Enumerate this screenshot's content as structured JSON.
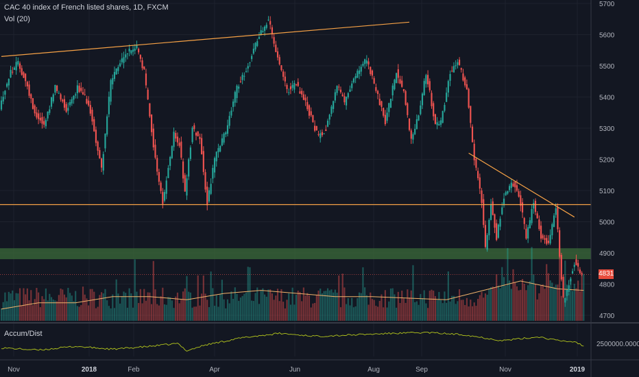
{
  "header": {
    "title": "CAC 40 index of French listed shares, 1D, FXCM",
    "volume_label": "Vol (20)"
  },
  "indicator": {
    "label": "Accum/Dist",
    "value_label": "2500000.0000"
  },
  "last_price": {
    "label": "4831",
    "value": 4831
  },
  "colors": {
    "background": "#131722",
    "up": "#26a69a",
    "down": "#ef5350",
    "trendline": "#f7a246",
    "support_zone": "#3b6b3a",
    "ad_line": "#b6c81c",
    "vol_ma": "#f2b36b"
  },
  "chart_data": {
    "type": "candlestick",
    "title": "CAC 40 index of French listed shares, 1D, FXCM",
    "y_axis": {
      "ticks": [
        4700,
        4800,
        4900,
        5000,
        5100,
        5200,
        5300,
        5400,
        5500,
        5600,
        5700
      ],
      "range": [
        4670,
        5710
      ]
    },
    "x_axis": {
      "labels": [
        "Nov",
        "2018",
        "Feb",
        "Apr",
        "Jun",
        "Aug",
        "Sep",
        "Nov",
        "2019"
      ],
      "bold": [
        "2018",
        "2019"
      ]
    },
    "price_path": [
      [
        0,
        5370
      ],
      [
        6,
        5480
      ],
      [
        10,
        5510
      ],
      [
        14,
        5450
      ],
      [
        19,
        5350
      ],
      [
        24,
        5310
      ],
      [
        30,
        5430
      ],
      [
        36,
        5360
      ],
      [
        42,
        5430
      ],
      [
        48,
        5380
      ],
      [
        55,
        5170
      ],
      [
        60,
        5450
      ],
      [
        68,
        5540
      ],
      [
        74,
        5560
      ],
      [
        78,
        5480
      ],
      [
        84,
        5200
      ],
      [
        88,
        5060
      ],
      [
        94,
        5280
      ],
      [
        97,
        5250
      ],
      [
        100,
        5090
      ],
      [
        104,
        5300
      ],
      [
        108,
        5270
      ],
      [
        112,
        5060
      ],
      [
        116,
        5200
      ],
      [
        122,
        5290
      ],
      [
        128,
        5430
      ],
      [
        134,
        5500
      ],
      [
        140,
        5600
      ],
      [
        145,
        5650
      ],
      [
        150,
        5520
      ],
      [
        155,
        5420
      ],
      [
        160,
        5440
      ],
      [
        165,
        5380
      ],
      [
        172,
        5270
      ],
      [
        176,
        5300
      ],
      [
        182,
        5440
      ],
      [
        186,
        5380
      ],
      [
        190,
        5450
      ],
      [
        198,
        5520
      ],
      [
        204,
        5400
      ],
      [
        208,
        5320
      ],
      [
        214,
        5480
      ],
      [
        218,
        5420
      ],
      [
        222,
        5260
      ],
      [
        226,
        5350
      ],
      [
        230,
        5480
      ],
      [
        235,
        5310
      ],
      [
        238,
        5320
      ],
      [
        243,
        5480
      ],
      [
        247,
        5510
      ],
      [
        252,
        5430
      ],
      [
        256,
        5200
      ],
      [
        260,
        5070
      ],
      [
        262,
        4920
      ],
      [
        265,
        5060
      ],
      [
        268,
        4950
      ],
      [
        272,
        5080
      ],
      [
        276,
        5130
      ],
      [
        280,
        5090
      ],
      [
        284,
        4950
      ],
      [
        288,
        5060
      ],
      [
        292,
        4950
      ],
      [
        296,
        4930
      ],
      [
        300,
        5040
      ],
      [
        304,
        4750
      ],
      [
        306,
        4780
      ],
      [
        310,
        4870
      ],
      [
        314,
        4831
      ]
    ],
    "volume_ma": [
      [
        0,
        4720
      ],
      [
        20,
        4740
      ],
      [
        40,
        4740
      ],
      [
        60,
        4760
      ],
      [
        80,
        4760
      ],
      [
        100,
        4750
      ],
      [
        120,
        4770
      ],
      [
        140,
        4780
      ],
      [
        160,
        4770
      ],
      [
        180,
        4760
      ],
      [
        200,
        4760
      ],
      [
        220,
        4755
      ],
      [
        240,
        4750
      ],
      [
        260,
        4780
      ],
      [
        280,
        4810
      ],
      [
        300,
        4785
      ],
      [
        314,
        4780
      ]
    ],
    "ad_line": [
      [
        0,
        0.3
      ],
      [
        20,
        0.22
      ],
      [
        40,
        0.35
      ],
      [
        60,
        0.25
      ],
      [
        80,
        0.35
      ],
      [
        95,
        0.45
      ],
      [
        100,
        0.2
      ],
      [
        110,
        0.4
      ],
      [
        130,
        0.65
      ],
      [
        150,
        0.8
      ],
      [
        170,
        0.7
      ],
      [
        190,
        0.75
      ],
      [
        210,
        0.8
      ],
      [
        230,
        0.83
      ],
      [
        250,
        0.75
      ],
      [
        270,
        0.55
      ],
      [
        290,
        0.68
      ],
      [
        300,
        0.55
      ],
      [
        310,
        0.5
      ],
      [
        314,
        0.35
      ]
    ],
    "trendlines": [
      {
        "from": [
          0,
          5530
        ],
        "to": [
          220,
          5640
        ]
      },
      {
        "from": [
          252,
          5220
        ],
        "to": [
          309,
          5015
        ]
      }
    ],
    "horizontal_levels": [
      5055
    ],
    "support_zone": [
      4880,
      4915
    ]
  }
}
